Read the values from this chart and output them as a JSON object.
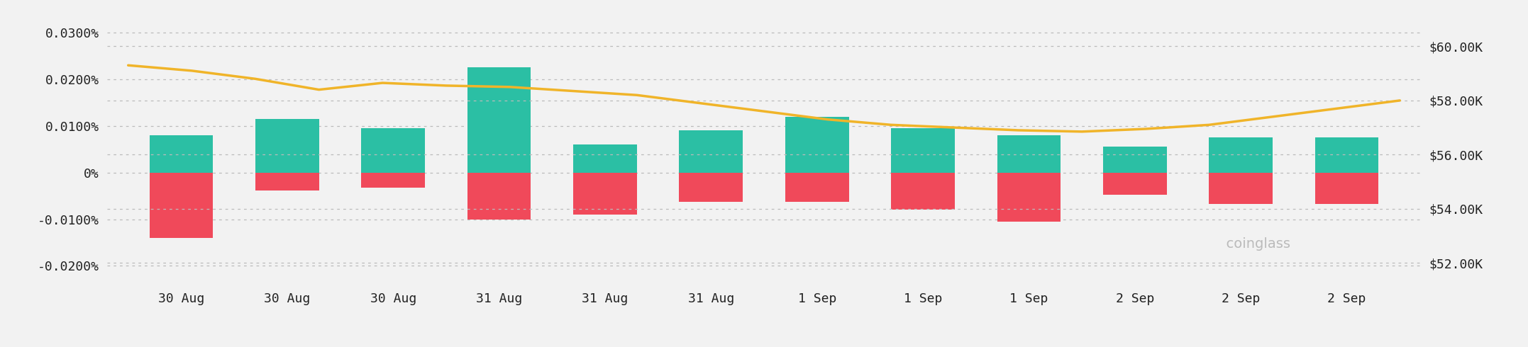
{
  "bar_labels": [
    "30 Aug",
    "30 Aug",
    "30 Aug",
    "31 Aug",
    "31 Aug",
    "31 Aug",
    "1 Sep",
    "1 Sep",
    "1 Sep",
    "2 Sep",
    "2 Sep",
    "2 Sep"
  ],
  "bar_positive": [
    0.008,
    0.0115,
    0.0095,
    0.0225,
    0.006,
    0.009,
    0.012,
    0.0095,
    0.008,
    0.0055,
    0.0075,
    0.0075
  ],
  "bar_negative": [
    -0.014,
    -0.0038,
    -0.0033,
    -0.01,
    -0.009,
    -0.0062,
    -0.0063,
    -0.008,
    -0.0105,
    -0.0048,
    -0.0068,
    -0.0068
  ],
  "btc_price": [
    59300,
    59100,
    58800,
    58400,
    58650,
    58550,
    58500,
    58350,
    58200,
    57900,
    57600,
    57300,
    57100,
    57000,
    56900,
    56850,
    56950,
    57100,
    57400,
    57700,
    58000
  ],
  "color_positive": "#2bbfa4",
  "color_negative": "#f0495a",
  "color_line": "#f0b429",
  "background_color": "#f2f2f2",
  "left_yticks": [
    -0.02,
    -0.01,
    0.0,
    0.01,
    0.02,
    0.03
  ],
  "left_ytick_labels": [
    "-0.0200%",
    "-0.0100%",
    "0%",
    "0.0100%",
    "0.0200%",
    "0.0300%"
  ],
  "right_yticks": [
    52000,
    54000,
    56000,
    58000,
    60000
  ],
  "right_ytick_labels": [
    "$52.00K",
    "$54.00K",
    "$56.00K",
    "$58.00K",
    "$60.00K"
  ],
  "ylim_left": [
    -0.024,
    0.034
  ],
  "ylim_right": [
    51200,
    61200
  ],
  "watermark": "coinglass"
}
